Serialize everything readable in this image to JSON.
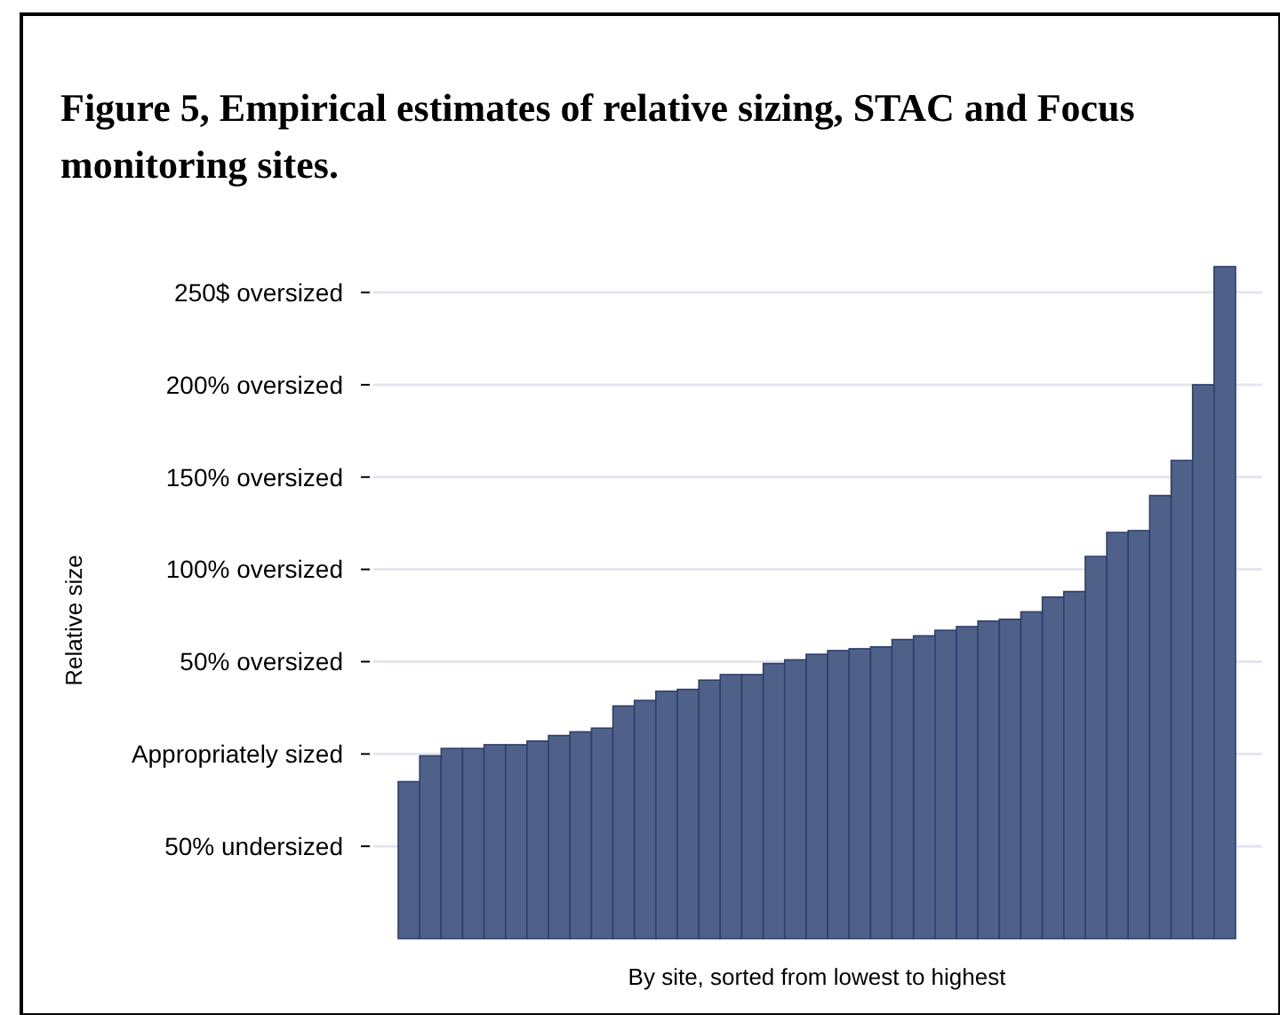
{
  "chart_data": {
    "type": "bar",
    "title": "Figure 5, Empirical estimates of relative sizing, STAC and Focus monitoring sites.",
    "xlabel": "By site, sorted from lowest to highest",
    "ylabel": "Relative size",
    "categories": [
      null,
      null,
      null,
      null,
      null,
      null,
      null,
      null,
      null,
      null,
      null,
      null,
      null,
      null,
      null,
      null,
      null,
      null,
      null,
      null,
      null,
      null,
      null,
      null,
      null,
      null,
      null,
      null,
      null,
      null,
      null,
      null,
      null,
      null,
      null,
      null,
      null,
      null,
      null
    ],
    "base": [
      -100,
      -100,
      -100,
      -100,
      -100,
      -100,
      -100,
      -100,
      -100,
      -100,
      -100,
      -100,
      -100,
      -100,
      -100,
      -100,
      -100,
      -100,
      -100,
      -100,
      -100,
      -100,
      -100,
      -100,
      -100,
      -100,
      -100,
      -100,
      -100,
      -100,
      -100,
      -100,
      -100,
      -100,
      -100,
      -100,
      -100,
      -100,
      -100
    ],
    "values": [
      85,
      99,
      103,
      103,
      105,
      105,
      107,
      110,
      112,
      114,
      126,
      129,
      134,
      135,
      140,
      143,
      143,
      149,
      151,
      154,
      156,
      157,
      158,
      162,
      164,
      167,
      169,
      172,
      173,
      177,
      185,
      188,
      207,
      220,
      221,
      240,
      259,
      300,
      364
    ],
    "color": "#4f6189",
    "ylim": [
      -100,
      264
    ],
    "yticks": [
      {
        "value": -50,
        "label": "50% undersized"
      },
      {
        "value": 0,
        "label": "Appropriately sized"
      },
      {
        "value": 50,
        "label": "50% oversized"
      },
      {
        "value": 100,
        "label": "100% oversized"
      },
      {
        "value": 150,
        "label": "150% oversized"
      },
      {
        "value": 200,
        "label": "200% oversized"
      },
      {
        "value": 250,
        "label": "250$ oversized"
      }
    ],
    "grid": "y"
  }
}
